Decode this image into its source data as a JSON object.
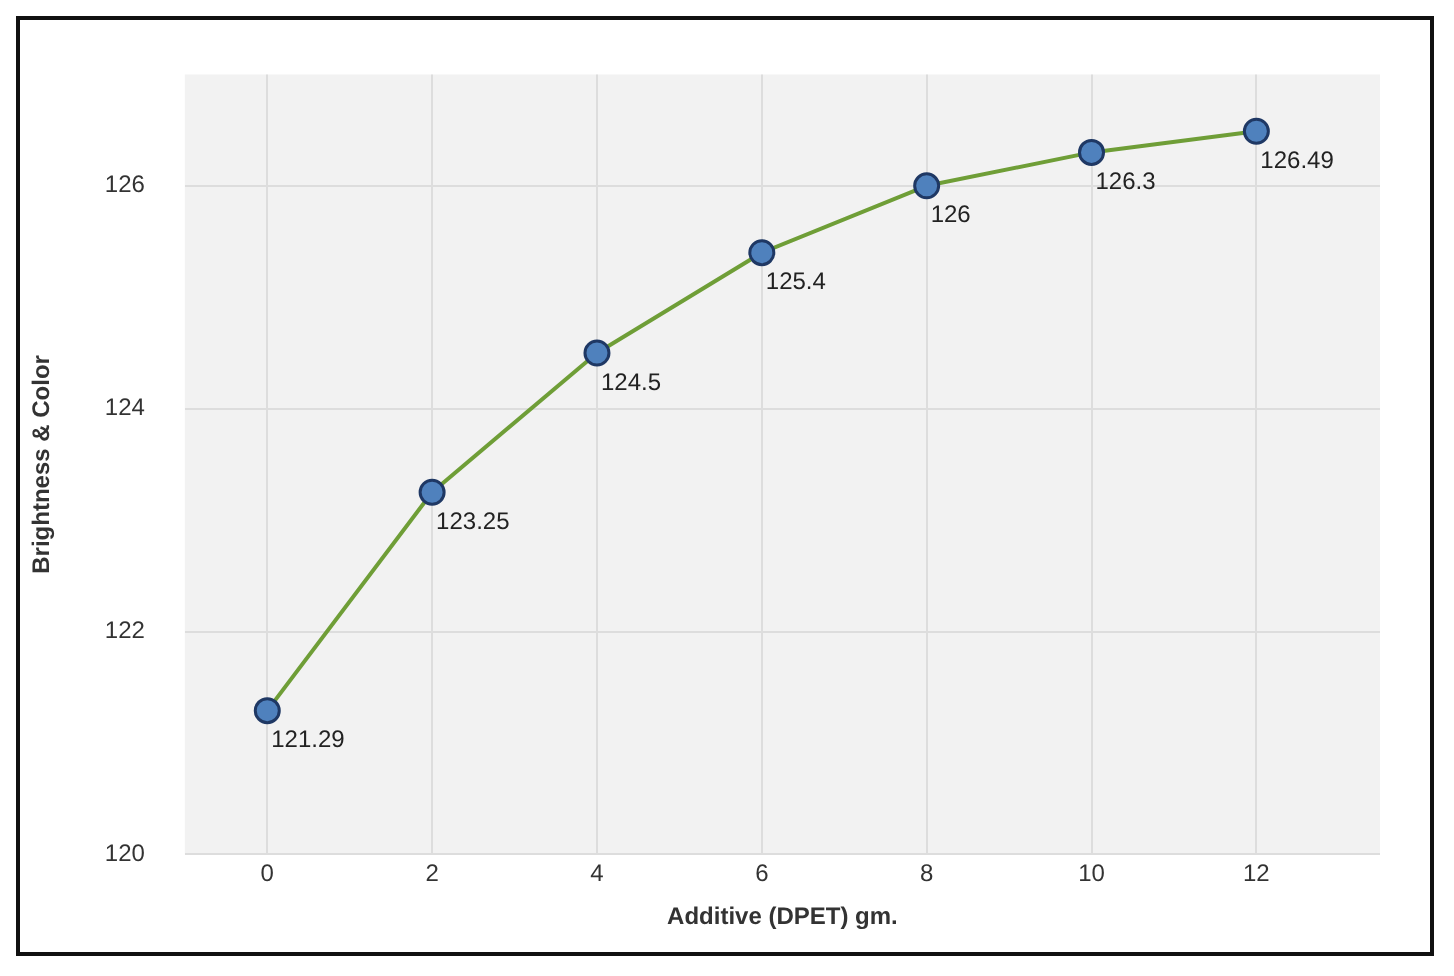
{
  "chart_data": {
    "type": "line",
    "xlabel": "Additive (DPET) gm.",
    "ylabel": "Brightness & Color",
    "x": [
      0,
      2,
      4,
      6,
      8,
      10,
      12
    ],
    "series": [
      {
        "color": "#6f9e37",
        "values": [
          121.29,
          123.25,
          124.5,
          125.4,
          126,
          126.3,
          126.49
        ]
      }
    ],
    "xlim": [
      -1,
      13.5
    ],
    "xticks": [
      0,
      2,
      4,
      6,
      8,
      10,
      12
    ],
    "ylim": [
      120,
      127
    ],
    "yticks": [
      120,
      122,
      124,
      126
    ],
    "grid": true,
    "legend": false,
    "marker": "circle",
    "line_style": "solid",
    "data_labels": true
  }
}
